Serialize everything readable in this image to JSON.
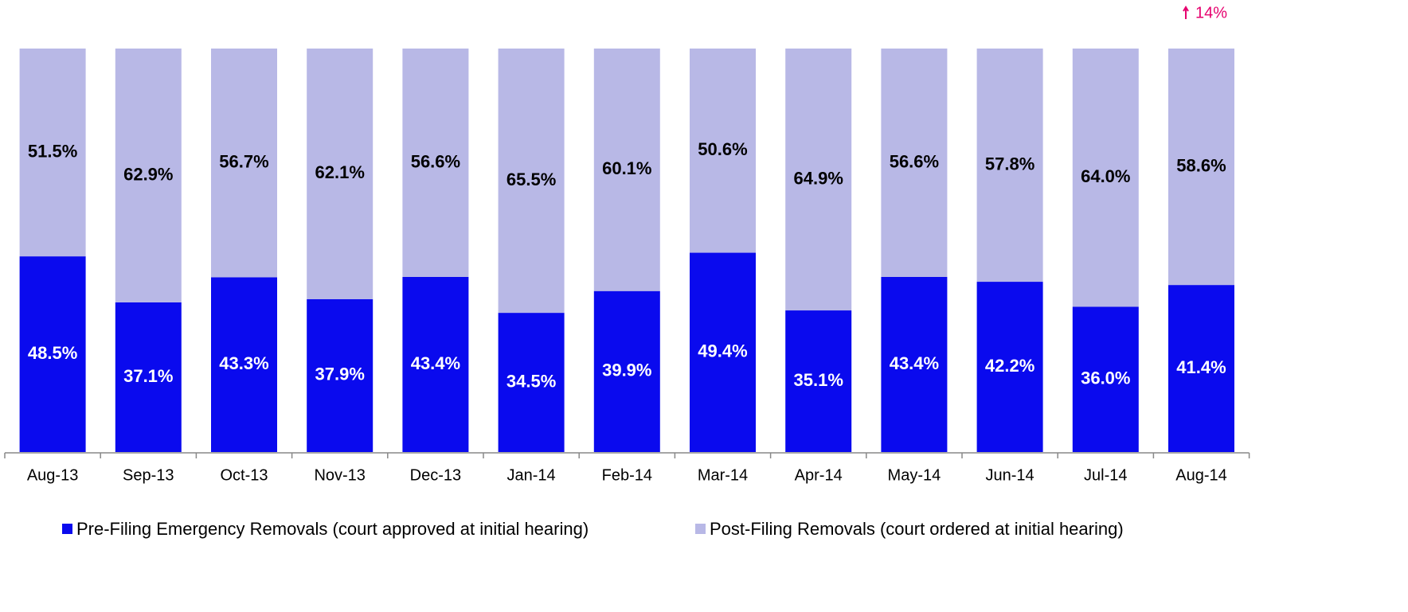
{
  "chart_data": {
    "type": "stacked_bar_100",
    "annotation": "14%",
    "categories": [
      "Aug-13",
      "Sep-13",
      "Oct-13",
      "Nov-13",
      "Dec-13",
      "Jan-14",
      "Feb-14",
      "Mar-14",
      "Apr-14",
      "May-14",
      "Jun-14",
      "Jul-14",
      "Aug-14"
    ],
    "series": [
      {
        "name": "Pre-Filing Emergency Removals (court approved at initial hearing)",
        "color": "#0a0aee",
        "values": [
          48.5,
          37.1,
          43.3,
          37.9,
          43.4,
          34.5,
          39.9,
          49.4,
          35.1,
          43.4,
          42.2,
          36.0,
          41.4
        ],
        "value_labels": [
          "48.5%",
          "37.1%",
          "43.3%",
          "37.9%",
          "43.4%",
          "34.5%",
          "39.9%",
          "49.4%",
          "35.1%",
          "43.4%",
          "42.2%",
          "36.0%",
          "41.4%"
        ]
      },
      {
        "name": "Post-Filing Removals (court ordered at initial hearing)",
        "color": "#b8b8e6",
        "values": [
          51.5,
          62.9,
          56.7,
          62.1,
          56.6,
          65.5,
          60.1,
          50.6,
          64.9,
          56.6,
          57.8,
          64.0,
          58.6
        ],
        "value_labels": [
          "51.5%",
          "62.9%",
          "56.7%",
          "62.1%",
          "56.6%",
          "65.5%",
          "60.1%",
          "50.6%",
          "64.9%",
          "56.6%",
          "57.8%",
          "64.0%",
          "58.6%"
        ]
      }
    ],
    "ylim": [
      0,
      100
    ],
    "legend": "bottom"
  }
}
